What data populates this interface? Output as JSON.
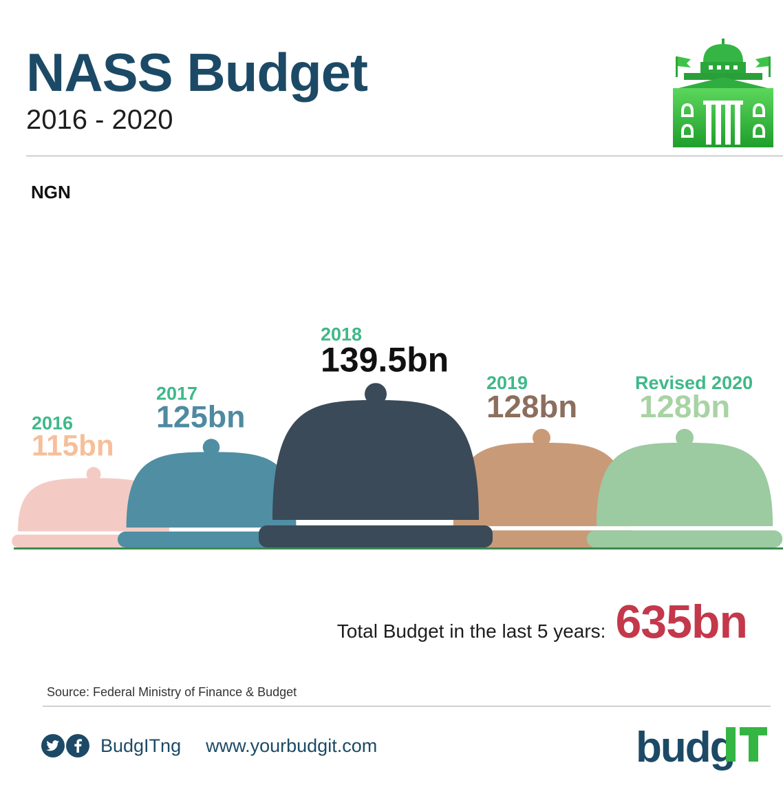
{
  "header": {
    "title": "NASS Budget",
    "subtitle": "2016 - 2020",
    "currency": "NGN"
  },
  "colors": {
    "title": "#1c4a66",
    "year_label": "#3fb88a",
    "total_value": "#c3384a",
    "brand_green": "#3bbf3b"
  },
  "chart_data": {
    "type": "bar",
    "categories": [
      "2016",
      "2017",
      "2018",
      "2019",
      "Revised 2020"
    ],
    "values": [
      115,
      125,
      139.5,
      128,
      128
    ],
    "value_labels": [
      "115bn",
      "125bn",
      "139.5bn",
      "128bn",
      "128bn"
    ],
    "series_colors": [
      "#f3cbc4",
      "#4f8ea3",
      "#3a4a58",
      "#c99a78",
      "#9ccaa1"
    ],
    "value_label_colors": [
      "#f6bf9a",
      "#4e8aa1",
      "#111111",
      "#8c6e5e",
      "#a8d3a4"
    ],
    "unit": "bn"
  },
  "summary": {
    "total_label": "Total Budget in the last 5 years:",
    "total_value": "635bn"
  },
  "footer": {
    "source": "Source: Federal Ministry of Finance & Budget",
    "handle": "BudgITng",
    "website": "www.yourbudgit.com",
    "logo_text": "budg",
    "logo_accent": "IT"
  },
  "icons": [
    "building-icon",
    "twitter-icon",
    "facebook-icon"
  ]
}
